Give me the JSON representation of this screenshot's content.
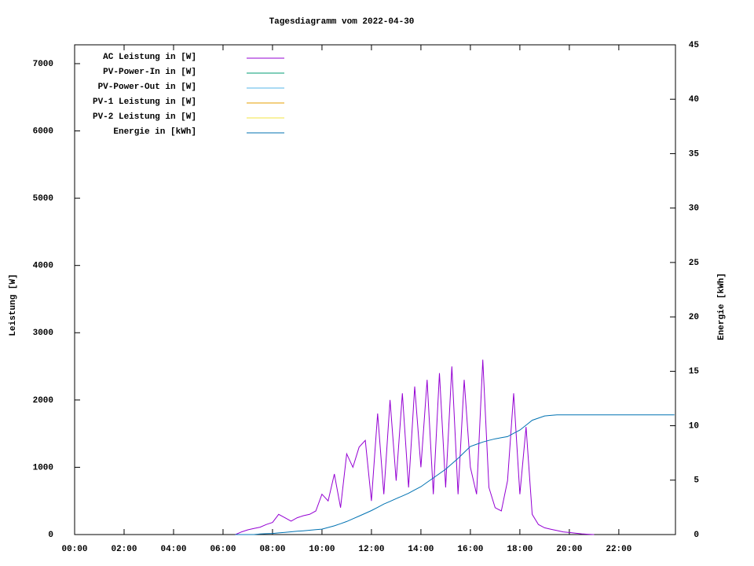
{
  "chart_data": {
    "type": "line",
    "title": "Tagesdiagramm vom 2022-04-30",
    "y_label": "Leistung [W]",
    "y2_label": "Energie [kWh]",
    "x": [
      6.5,
      6.75,
      7,
      7.25,
      7.5,
      7.75,
      8,
      8.25,
      8.5,
      8.75,
      9,
      9.25,
      9.5,
      9.75,
      10,
      10.25,
      10.5,
      10.75,
      11,
      11.25,
      11.5,
      11.75,
      12,
      12.25,
      12.5,
      12.75,
      13,
      13.25,
      13.5,
      13.75,
      14,
      14.25,
      14.5,
      14.75,
      15,
      15.25,
      15.5,
      15.75,
      16,
      16.25,
      16.5,
      16.75,
      17,
      17.25,
      17.5,
      17.75,
      18,
      18.25,
      18.5,
      18.75,
      19,
      19.25,
      19.5,
      19.75,
      20,
      20.25,
      20.5,
      20.75,
      21,
      21.25,
      21.5,
      21.75,
      22,
      22.25,
      22.5,
      22.75,
      23,
      23.25,
      23.5,
      23.75,
      24,
      24.25
    ],
    "series": [
      {
        "name": "AC Leistung in [W]",
        "color": "#9400d3",
        "values": [
          0,
          40,
          70,
          90,
          110,
          150,
          180,
          300,
          250,
          200,
          250,
          280,
          300,
          350,
          600,
          500,
          900,
          400,
          1200,
          1000,
          1300,
          1400,
          500,
          1800,
          600,
          2000,
          800,
          2100,
          700,
          2200,
          1000,
          2300,
          600,
          2400,
          700,
          2500,
          600,
          2300,
          1000,
          600,
          2600,
          700,
          400,
          350,
          800,
          2100,
          600,
          1600,
          300,
          150,
          100,
          80,
          60,
          40,
          30,
          20,
          10,
          5,
          0,
          null,
          null,
          null,
          null,
          null,
          null,
          null,
          null,
          null,
          null,
          null,
          null,
          null
        ]
      },
      {
        "name": "PV-Power-In in [W]",
        "color": "#009e73",
        "values": [
          null,
          null,
          null,
          null,
          null,
          null,
          null,
          null,
          null,
          null,
          null,
          null,
          null,
          null,
          null,
          null,
          null,
          null,
          null,
          null,
          null,
          null,
          null,
          null,
          null,
          null,
          null,
          null,
          null,
          null,
          null,
          null,
          null,
          null,
          null,
          null,
          null,
          null,
          null,
          null,
          null,
          null,
          null,
          null,
          null,
          null,
          null,
          null,
          null,
          null,
          null,
          null,
          null,
          null,
          null,
          null,
          null,
          null,
          null,
          null,
          null,
          null,
          null,
          null,
          null,
          null,
          null,
          null,
          null,
          null,
          null,
          null
        ]
      },
      {
        "name": "PV-Power-Out in [W]",
        "color": "#56b4e9",
        "values": [
          null,
          null,
          null,
          null,
          null,
          null,
          null,
          null,
          null,
          null,
          null,
          null,
          null,
          null,
          null,
          null,
          null,
          null,
          null,
          null,
          null,
          null,
          null,
          null,
          null,
          null,
          null,
          null,
          null,
          null,
          null,
          null,
          null,
          null,
          null,
          null,
          null,
          null,
          null,
          null,
          null,
          null,
          null,
          null,
          null,
          null,
          null,
          null,
          null,
          null,
          null,
          null,
          null,
          null,
          null,
          null,
          null,
          null,
          null,
          null,
          null,
          null,
          null,
          null,
          null,
          null,
          null,
          null,
          null,
          null,
          null,
          null
        ]
      },
      {
        "name": "PV-1 Leistung in [W]",
        "color": "#e69f00",
        "values": [
          null,
          null,
          null,
          null,
          null,
          null,
          null,
          null,
          null,
          null,
          null,
          null,
          null,
          null,
          null,
          null,
          null,
          null,
          null,
          null,
          null,
          null,
          null,
          null,
          null,
          null,
          null,
          null,
          null,
          null,
          null,
          null,
          null,
          null,
          null,
          null,
          null,
          null,
          null,
          null,
          null,
          null,
          null,
          null,
          null,
          null,
          null,
          null,
          null,
          null,
          null,
          null,
          null,
          null,
          null,
          null,
          null,
          null,
          null,
          null,
          null,
          null,
          null,
          null,
          null,
          null,
          null,
          null,
          null,
          null,
          null,
          null
        ]
      },
      {
        "name": "PV-2 Leistung in [W]",
        "color": "#f0e442",
        "values": [
          null,
          null,
          null,
          null,
          null,
          null,
          null,
          null,
          null,
          null,
          null,
          null,
          null,
          null,
          null,
          null,
          null,
          null,
          null,
          null,
          null,
          null,
          null,
          null,
          null,
          null,
          null,
          null,
          null,
          null,
          null,
          null,
          null,
          null,
          null,
          null,
          null,
          null,
          null,
          null,
          null,
          null,
          null,
          null,
          null,
          null,
          null,
          null,
          null,
          null,
          null,
          null,
          null,
          null,
          null,
          null,
          null,
          null,
          null,
          null,
          null,
          null,
          null,
          null,
          null,
          null,
          null,
          null,
          null,
          null,
          null,
          null
        ]
      },
      {
        "name": "Energie in [kWh]",
        "color": "#0072b2",
        "axis": "y2",
        "values": [
          0,
          0,
          0,
          0,
          0.05,
          0.08,
          0.1,
          0.15,
          0.2,
          0.25,
          0.3,
          0.35,
          0.4,
          0.45,
          0.5,
          0.65,
          0.8,
          1.0,
          1.2,
          1.45,
          1.7,
          1.95,
          2.2,
          2.5,
          2.8,
          3.05,
          3.3,
          3.55,
          3.8,
          4.1,
          4.4,
          4.8,
          5.2,
          5.6,
          6.0,
          6.5,
          7.0,
          7.55,
          8.1,
          8.3,
          8.5,
          8.65,
          8.8,
          8.9,
          9.0,
          9.3,
          9.6,
          10.05,
          10.5,
          10.7,
          10.9,
          10.95,
          11.0,
          11.0,
          11.0,
          11.0,
          11.0,
          11.0,
          11.0,
          11.0,
          11.0,
          11.0,
          11.0,
          11.0,
          11.0,
          11.0,
          11.0,
          11.0,
          11.0,
          11.0,
          11.0,
          11.0
        ]
      }
    ],
    "xlim": [
      0,
      24.29
    ],
    "xticks": [
      {
        "value": 0,
        "label": "00:00"
      },
      {
        "value": 2,
        "label": "02:00"
      },
      {
        "value": 4,
        "label": "04:00"
      },
      {
        "value": 6,
        "label": "06:00"
      },
      {
        "value": 8,
        "label": "08:00"
      },
      {
        "value": 10,
        "label": "10:00"
      },
      {
        "value": 12,
        "label": "12:00"
      },
      {
        "value": 14,
        "label": "14:00"
      },
      {
        "value": 16,
        "label": "16:00"
      },
      {
        "value": 18,
        "label": "18:00"
      },
      {
        "value": 20,
        "label": "20:00"
      },
      {
        "value": 22,
        "label": "22:00"
      }
    ],
    "ylim": [
      0,
      7280
    ],
    "yticks": [
      0,
      1000,
      2000,
      3000,
      4000,
      5000,
      6000,
      7000
    ],
    "y2lim": [
      0,
      45
    ],
    "y2ticks": [
      0,
      5,
      10,
      15,
      20,
      25,
      30,
      35,
      40,
      45
    ],
    "legend": "top-left"
  }
}
